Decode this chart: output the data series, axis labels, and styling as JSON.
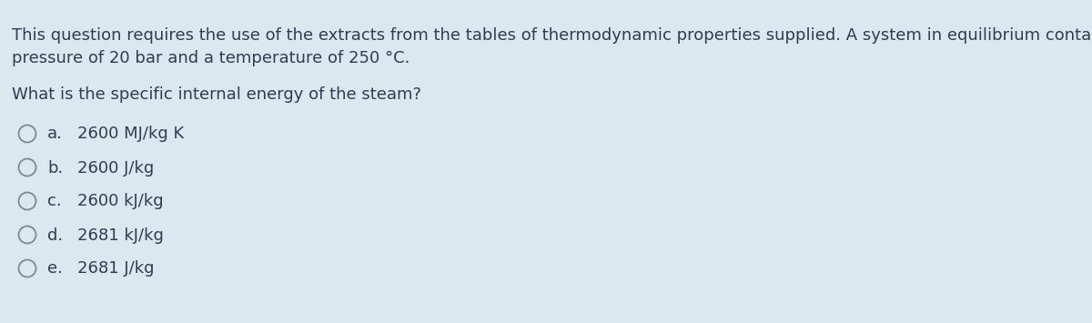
{
  "background_color": "#dce8f0",
  "paragraph_text_line1": "This question requires the use of the extracts from the tables of thermodynamic properties supplied. A system in equilibrium contains steam at a",
  "paragraph_text_line2": "pressure of 20 bar and a temperature of 250 °C.",
  "question_text": "What is the specific internal energy of the steam?",
  "options": [
    {
      "letter": "a.",
      "text": "2600 MJ/kg K"
    },
    {
      "letter": "b.",
      "text": "2600 J/kg"
    },
    {
      "letter": "c.",
      "text": "2600 kJ/kg"
    },
    {
      "letter": "d.",
      "text": "2681 kJ/kg"
    },
    {
      "letter": "e.",
      "text": "2681 J/kg"
    }
  ],
  "text_color": "#2c3e50",
  "circle_edge_color": "#7a8a95",
  "font_size_para": 13.0,
  "font_size_options": 13.0,
  "fig_width": 12.0,
  "fig_height": 3.55
}
